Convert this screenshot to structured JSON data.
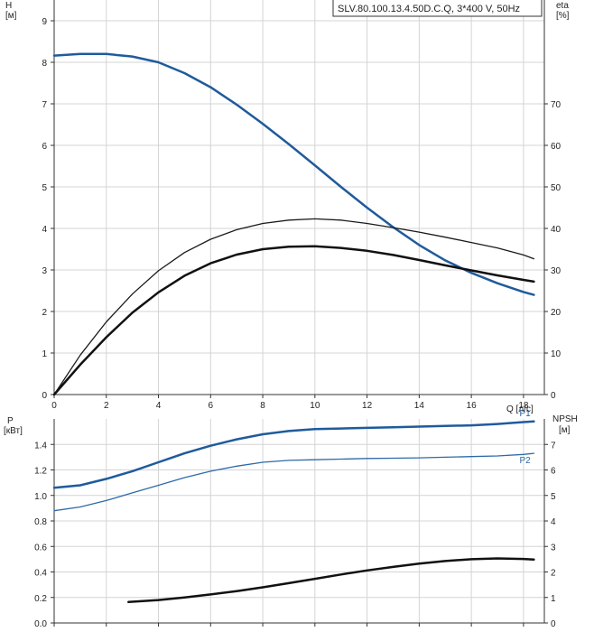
{
  "chart_data": [
    {
      "type": "line",
      "title": "SLV.80.100.13.4.50D.C.Q, 3*400 V, 50Hz",
      "xlabel": "Q [л/с]",
      "ylabel": "H\n[м]",
      "y2label": "eta\n[%]",
      "xlim": [
        0,
        18.8
      ],
      "ylim": [
        0,
        9.5
      ],
      "y2lim": [
        0,
        95
      ],
      "x_ticks": [
        0,
        2,
        4,
        6,
        8,
        10,
        12,
        14,
        16,
        18
      ],
      "y_ticks": [
        0,
        1,
        2,
        3,
        4,
        5,
        6,
        7,
        8,
        9
      ],
      "y2_ticks": [
        0,
        10,
        20,
        30,
        40,
        50,
        60,
        70
      ],
      "grid": true,
      "series": [
        {
          "name": "",
          "axis": "left",
          "color": "#1f5b9c",
          "width": 2.5,
          "points": [
            [
              0,
              8.16
            ],
            [
              1,
              8.2
            ],
            [
              2,
              8.2
            ],
            [
              3,
              8.14
            ],
            [
              4,
              8.0
            ],
            [
              5,
              7.74
            ],
            [
              6,
              7.4
            ],
            [
              7,
              6.98
            ],
            [
              8,
              6.52
            ],
            [
              9,
              6.03
            ],
            [
              10,
              5.52
            ],
            [
              11,
              5.0
            ],
            [
              12,
              4.5
            ],
            [
              13,
              4.03
            ],
            [
              14,
              3.6
            ],
            [
              15,
              3.23
            ],
            [
              16,
              2.93
            ],
            [
              17,
              2.68
            ],
            [
              18,
              2.47
            ],
            [
              18.4,
              2.4
            ]
          ]
        },
        {
          "name": "",
          "axis": "right",
          "color": "#1a1a1a",
          "width": 1.3,
          "points": [
            [
              0,
              0
            ],
            [
              1,
              9.5
            ],
            [
              2,
              17.5
            ],
            [
              3,
              24.2
            ],
            [
              4,
              29.8
            ],
            [
              5,
              34.2
            ],
            [
              6,
              37.4
            ],
            [
              7,
              39.7
            ],
            [
              8,
              41.2
            ],
            [
              9,
              42.0
            ],
            [
              10,
              42.3
            ],
            [
              11,
              42.0
            ],
            [
              12,
              41.2
            ],
            [
              13,
              40.2
            ],
            [
              14,
              39.1
            ],
            [
              15,
              37.9
            ],
            [
              16,
              36.6
            ],
            [
              17,
              35.3
            ],
            [
              18,
              33.6
            ],
            [
              18.4,
              32.7
            ]
          ]
        },
        {
          "name": "",
          "axis": "right",
          "color": "#111111",
          "width": 2.5,
          "points": [
            [
              0,
              0
            ],
            [
              1,
              7.2
            ],
            [
              2,
              13.8
            ],
            [
              3,
              19.7
            ],
            [
              4,
              24.6
            ],
            [
              5,
              28.6
            ],
            [
              6,
              31.6
            ],
            [
              7,
              33.7
            ],
            [
              8,
              35.0
            ],
            [
              9,
              35.6
            ],
            [
              10,
              35.7
            ],
            [
              11,
              35.3
            ],
            [
              12,
              34.6
            ],
            [
              13,
              33.6
            ],
            [
              14,
              32.4
            ],
            [
              15,
              31.1
            ],
            [
              16,
              29.9
            ],
            [
              17,
              28.7
            ],
            [
              18,
              27.6
            ],
            [
              18.4,
              27.2
            ]
          ]
        }
      ]
    },
    {
      "type": "line",
      "title": "",
      "xlabel": "",
      "ylabel": "P\n[кВт]",
      "y2label": "NPSH\n[м]",
      "xlim": [
        0,
        18.8
      ],
      "ylim": [
        0,
        1.6
      ],
      "y2lim": [
        0,
        8
      ],
      "y_ticks": [
        0.0,
        0.2,
        0.4,
        0.6,
        0.8,
        1.0,
        1.2,
        1.4
      ],
      "y_tick_labels": [
        "0.0",
        "0.2",
        "0.4",
        "0.6",
        "0.8",
        "1.0",
        "1.2",
        "1.4"
      ],
      "y2_ticks": [
        0,
        1,
        2,
        3,
        4,
        5,
        6,
        7
      ],
      "grid": true,
      "series": [
        {
          "name": "P1",
          "axis": "left",
          "color": "#1f5b9c",
          "width": 2.5,
          "points": [
            [
              0,
              1.06
            ],
            [
              1,
              1.08
            ],
            [
              2,
              1.13
            ],
            [
              3,
              1.19
            ],
            [
              4,
              1.26
            ],
            [
              5,
              1.33
            ],
            [
              6,
              1.39
            ],
            [
              7,
              1.44
            ],
            [
              8,
              1.48
            ],
            [
              9,
              1.505
            ],
            [
              10,
              1.52
            ],
            [
              11,
              1.525
            ],
            [
              12,
              1.53
            ],
            [
              13,
              1.535
            ],
            [
              14,
              1.54
            ],
            [
              15,
              1.545
            ],
            [
              16,
              1.55
            ],
            [
              17,
              1.56
            ],
            [
              18,
              1.575
            ],
            [
              18.4,
              1.58
            ]
          ]
        },
        {
          "name": "P2",
          "axis": "left",
          "color": "#2e6aa8",
          "width": 1.3,
          "points": [
            [
              0,
              0.88
            ],
            [
              1,
              0.91
            ],
            [
              2,
              0.96
            ],
            [
              3,
              1.02
            ],
            [
              4,
              1.08
            ],
            [
              5,
              1.14
            ],
            [
              6,
              1.19
            ],
            [
              7,
              1.23
            ],
            [
              8,
              1.26
            ],
            [
              9,
              1.275
            ],
            [
              10,
              1.28
            ],
            [
              11,
              1.285
            ],
            [
              12,
              1.29
            ],
            [
              13,
              1.292
            ],
            [
              14,
              1.295
            ],
            [
              15,
              1.3
            ],
            [
              16,
              1.305
            ],
            [
              17,
              1.31
            ],
            [
              18,
              1.322
            ],
            [
              18.4,
              1.33
            ]
          ]
        },
        {
          "name": "",
          "axis": "right",
          "color": "#111111",
          "width": 2.5,
          "points": [
            [
              2.85,
              0.82
            ],
            [
              4,
              0.9
            ],
            [
              5,
              1.0
            ],
            [
              6,
              1.12
            ],
            [
              7,
              1.25
            ],
            [
              8,
              1.4
            ],
            [
              9,
              1.56
            ],
            [
              10,
              1.73
            ],
            [
              11,
              1.9
            ],
            [
              12,
              2.06
            ],
            [
              13,
              2.2
            ],
            [
              14,
              2.33
            ],
            [
              15,
              2.43
            ],
            [
              16,
              2.5
            ],
            [
              17,
              2.53
            ],
            [
              18,
              2.51
            ],
            [
              18.4,
              2.49
            ]
          ]
        }
      ]
    }
  ]
}
